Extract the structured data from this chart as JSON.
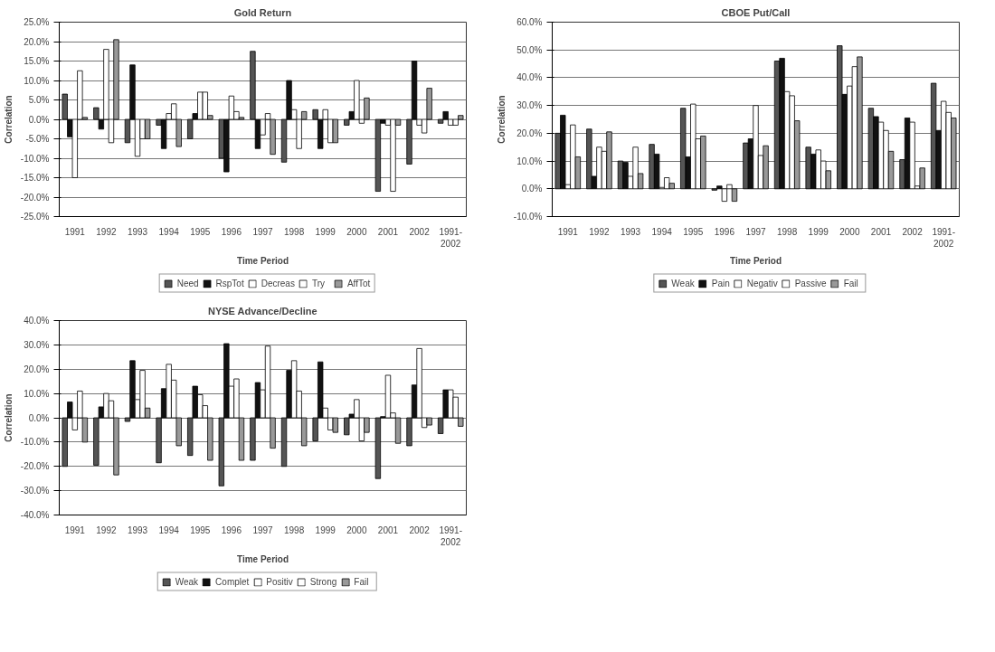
{
  "chart_data": [
    {
      "type": "bar",
      "title": "Gold Return",
      "xlabel": "Time Period",
      "ylabel": "Correlation",
      "categories": [
        "1991",
        "1992",
        "1993",
        "1994",
        "1995",
        "1996",
        "1997",
        "1998",
        "1999",
        "2000",
        "2001",
        "2002",
        "1991-2002"
      ],
      "series": [
        {
          "name": "Need",
          "color": "#555555",
          "values": [
            6.5,
            3.0,
            -6.0,
            -1.5,
            -5.0,
            -10.0,
            17.5,
            -11.0,
            2.5,
            -1.5,
            -18.5,
            -11.5,
            -1.0
          ]
        },
        {
          "name": "RspTot",
          "color": "#111111",
          "values": [
            -4.5,
            -2.5,
            14.0,
            -7.5,
            1.5,
            -13.5,
            -7.5,
            10.0,
            -7.5,
            2.0,
            -1.0,
            15.0,
            2.0
          ]
        },
        {
          "name": "Decreas",
          "color": "#ffffff",
          "values": [
            -15.0,
            18.0,
            -9.5,
            1.5,
            7.0,
            6.0,
            -4.0,
            2.5,
            2.5,
            10.0,
            -1.5,
            -1.5,
            -1.5
          ]
        },
        {
          "name": "Try",
          "color": "#ffffff",
          "values": [
            12.5,
            -6.0,
            -5.0,
            4.0,
            7.0,
            2.0,
            1.5,
            -7.5,
            -6.0,
            -1.0,
            -18.5,
            -3.5,
            -1.5
          ]
        },
        {
          "name": "AffTot",
          "color": "#999999",
          "values": [
            0.5,
            20.5,
            -5.0,
            -7.0,
            1.0,
            0.5,
            -9.0,
            2.0,
            -6.0,
            5.5,
            -1.5,
            8.0,
            1.0
          ]
        }
      ],
      "ylim": [
        -25,
        25
      ],
      "yticks": [
        {
          "value": -25,
          "label": "-25.0%"
        },
        {
          "value": -20,
          "label": "-20.0%"
        },
        {
          "value": -15,
          "label": "-15.0%"
        },
        {
          "value": -10,
          "label": "-10.0%"
        },
        {
          "value": -5,
          "label": "-5.0%"
        },
        {
          "value": 0,
          "label": "0.0%"
        },
        {
          "value": 5,
          "label": "5.0%"
        },
        {
          "value": 10,
          "label": "10.0%"
        },
        {
          "value": 15,
          "label": "15.0%"
        },
        {
          "value": 20,
          "label": "20.0%"
        },
        {
          "value": 25,
          "label": "25.0%"
        }
      ],
      "grid": "y",
      "legend": "bottom"
    },
    {
      "type": "bar",
      "title": "CBOE Put/Call",
      "xlabel": "Time Period",
      "ylabel": "Correlation",
      "categories": [
        "1991",
        "1992",
        "1993",
        "1994",
        "1995",
        "1996",
        "1997",
        "1998",
        "1999",
        "2000",
        "2001",
        "2002",
        "1991-2002"
      ],
      "series": [
        {
          "name": "Weak",
          "color": "#555555",
          "values": [
            20,
            21.5,
            10,
            16,
            29,
            -0.5,
            16.5,
            46,
            15,
            51.5,
            29,
            10.5,
            38
          ]
        },
        {
          "name": "Pain",
          "color": "#111111",
          "values": [
            26.5,
            4.5,
            9.5,
            12.5,
            11.5,
            1,
            18,
            47,
            12.5,
            34,
            26,
            25.5,
            21
          ]
        },
        {
          "name": "Negativ",
          "color": "#ffffff",
          "values": [
            1.5,
            15,
            4.5,
            0.5,
            30.5,
            -4.5,
            30,
            35,
            14,
            37,
            24,
            24,
            31.5
          ]
        },
        {
          "name": "Passive",
          "color": "#ffffff",
          "values": [
            23,
            13.5,
            15,
            4,
            18,
            1.5,
            12,
            33.5,
            10,
            44,
            21,
            1,
            27.5
          ]
        },
        {
          "name": "Fail",
          "color": "#999999",
          "values": [
            11.5,
            20.5,
            5.5,
            2,
            19,
            -4.5,
            15.5,
            24.5,
            6.5,
            47.5,
            13.5,
            7.5,
            25.5
          ]
        }
      ],
      "ylim": [
        -10,
        60
      ],
      "yticks": [
        {
          "value": -10,
          "label": "-10.0%"
        },
        {
          "value": 0,
          "label": "0.0%"
        },
        {
          "value": 10,
          "label": "10.0%"
        },
        {
          "value": 20,
          "label": "20.0%"
        },
        {
          "value": 30,
          "label": "30.0%"
        },
        {
          "value": 40,
          "label": "40.0%"
        },
        {
          "value": 50,
          "label": "50.0%"
        },
        {
          "value": 60,
          "label": "60.0%"
        }
      ],
      "grid": "y",
      "legend": "bottom"
    },
    {
      "type": "bar",
      "title": "NYSE Advance/Decline",
      "xlabel": "Time Period",
      "ylabel": "Correlation",
      "categories": [
        "1991",
        "1992",
        "1993",
        "1994",
        "1995",
        "1996",
        "1997",
        "1998",
        "1999",
        "2000",
        "2001",
        "2002",
        "1991-2002"
      ],
      "series": [
        {
          "name": "Weak",
          "color": "#555555",
          "values": [
            -20,
            -19.5,
            -1.5,
            -18.5,
            -15.5,
            -28,
            -17.5,
            -20,
            -9.5,
            -7,
            -25,
            -11.5,
            -6.5
          ]
        },
        {
          "name": "Complet",
          "color": "#111111",
          "values": [
            6.5,
            4.5,
            23.5,
            12,
            13,
            30.5,
            14.5,
            19.5,
            23,
            1.5,
            0.5,
            13.5,
            11.5
          ]
        },
        {
          "name": "Positiv",
          "color": "#ffffff",
          "values": [
            -5,
            10,
            7.5,
            22,
            9.5,
            13,
            11.5,
            23.5,
            4,
            7.5,
            17.5,
            28.5,
            11.5
          ]
        },
        {
          "name": "Strong",
          "color": "#ffffff",
          "values": [
            11,
            7,
            19.5,
            15.5,
            5,
            16,
            29.5,
            11,
            -5,
            -9.5,
            2,
            -4,
            8.5
          ]
        },
        {
          "name": "Fail",
          "color": "#999999",
          "values": [
            -10,
            -23.5,
            4,
            -11.5,
            -17.5,
            -17.5,
            -12.5,
            -11.5,
            -6,
            -6,
            -10.5,
            -3,
            -3.5
          ]
        }
      ],
      "ylim": [
        -40,
        40
      ],
      "yticks": [
        {
          "value": -40,
          "label": "-40.0%"
        },
        {
          "value": -30,
          "label": "-30.0%"
        },
        {
          "value": -20,
          "label": "-20.0%"
        },
        {
          "value": -10,
          "label": "-10.0%"
        },
        {
          "value": 0,
          "label": "0.0%"
        },
        {
          "value": 10,
          "label": "10.0%"
        },
        {
          "value": 20,
          "label": "20.0%"
        },
        {
          "value": 30,
          "label": "30.0%"
        },
        {
          "value": 40,
          "label": "40.0%"
        }
      ],
      "grid": "y",
      "legend": "bottom"
    }
  ]
}
